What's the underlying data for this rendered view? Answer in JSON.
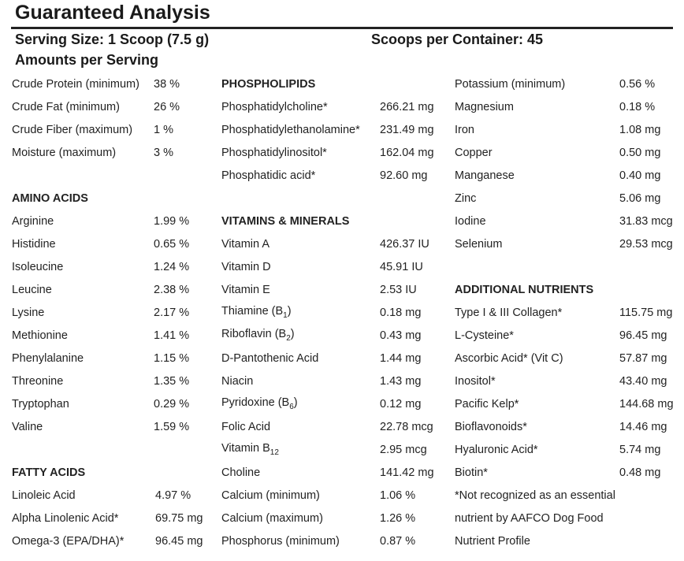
{
  "title": "Guaranteed Analysis",
  "serving_size": "Serving Size: 1 Scoop (7.5 g)",
  "scoops_per_container": "Scoops per Container: 45",
  "amounts_per_serving": "Amounts per Serving",
  "col1": {
    "basics": [
      {
        "label": "Crude Protein (minimum)",
        "value": "38 %"
      },
      {
        "label": "Crude Fat (minimum)",
        "value": "26 %"
      },
      {
        "label": "Crude Fiber (maximum)",
        "value": "1 %"
      },
      {
        "label": "Moisture (maximum)",
        "value": "3 %"
      }
    ],
    "amino_heading": "AMINO ACIDS",
    "amino": [
      {
        "label": "Arginine",
        "value": "1.99 %"
      },
      {
        "label": "Histidine",
        "value": "0.65 %"
      },
      {
        "label": "Isoleucine",
        "value": "1.24 %"
      },
      {
        "label": "Leucine",
        "value": "2.38 %"
      },
      {
        "label": "Lysine",
        "value": "2.17 %"
      },
      {
        "label": "Methionine",
        "value": "1.41 %"
      },
      {
        "label": "Phenylalanine",
        "value": "1.15 %"
      },
      {
        "label": "Threonine",
        "value": "1.35 %"
      },
      {
        "label": "Tryptophan",
        "value": "0.29 %"
      },
      {
        "label": "Valine",
        "value": "1.59 %"
      }
    ],
    "fatty_heading": "FATTY ACIDS",
    "fatty": [
      {
        "label": "Linoleic Acid",
        "value": "4.97 %"
      },
      {
        "label": "Alpha Linolenic Acid*",
        "value": "69.75 mg"
      },
      {
        "label": "Omega-3 (EPA/DHA)*",
        "value": "96.45 mg"
      }
    ]
  },
  "col2": {
    "phospho_heading": "PHOSPHOLIPIDS",
    "phospho": [
      {
        "label": "Phosphatidylcholine*",
        "value": "266.21 mg"
      },
      {
        "label": "Phosphatidylethanolamine*",
        "value": "231.49 mg"
      },
      {
        "label": "Phosphatidylinositol*",
        "value": "162.04 mg"
      },
      {
        "label": "Phosphatidic acid*",
        "value": "92.60 mg"
      }
    ],
    "vitamins_heading": "VITAMINS & MINERALS",
    "vitamins": [
      {
        "label": "Vitamin A",
        "value": "426.37 IU"
      },
      {
        "label": "Vitamin D",
        "value": "45.91 IU"
      },
      {
        "label": "Vitamin E",
        "value": "2.53 IU"
      },
      {
        "label": "Thiamine (B",
        "sub": "1",
        "tail": ")",
        "value": "0.18 mg"
      },
      {
        "label": "Riboflavin (B",
        "sub": "2",
        "tail": ")",
        "value": "0.43 mg"
      },
      {
        "label": "D-Pantothenic Acid",
        "value": "1.44 mg"
      },
      {
        "label": "Niacin",
        "value": "1.43 mg"
      },
      {
        "label": "Pyridoxine (B",
        "sub": "6",
        "tail": ")",
        "value": "0.12 mg"
      },
      {
        "label": "Folic Acid",
        "value": "22.78 mcg"
      },
      {
        "label": "Vitamin B",
        "sub": "12",
        "tail": "",
        "value": "2.95 mcg"
      },
      {
        "label": "Choline",
        "value": "141.42 mg"
      },
      {
        "label": "Calcium (minimum)",
        "value": "1.06 %"
      },
      {
        "label": "Calcium (maximum)",
        "value": "1.26 %"
      },
      {
        "label": "Phosphorus (minimum)",
        "value": "0.87 %"
      }
    ]
  },
  "col3": {
    "minerals": [
      {
        "label": "Potassium (minimum)",
        "value": "0.56 %"
      },
      {
        "label": "Magnesium",
        "value": "0.18 %"
      },
      {
        "label": "Iron",
        "value": "1.08 mg"
      },
      {
        "label": "Copper",
        "value": "0.50 mg"
      },
      {
        "label": "Manganese",
        "value": "0.40 mg"
      },
      {
        "label": "Zinc",
        "value": "5.06 mg"
      },
      {
        "label": "Iodine",
        "value": "31.83 mcg"
      },
      {
        "label": "Selenium",
        "value": "29.53 mcg"
      }
    ],
    "additional_heading": "ADDITIONAL NUTRIENTS",
    "additional": [
      {
        "label": "Type I & III Collagen*",
        "value": "115.75 mg"
      },
      {
        "label": "L-Cysteine*",
        "value": "96.45 mg"
      },
      {
        "label": "Ascorbic Acid* (Vit C)",
        "value": "57.87 mg"
      },
      {
        "label": "Inositol*",
        "value": "43.40 mg"
      },
      {
        "label": "Pacific Kelp*",
        "value": "144.68 mg"
      },
      {
        "label": "Bioflavonoids*",
        "value": "14.46 mg"
      },
      {
        "label": "Hyaluronic Acid*",
        "value": "5.74 mg"
      },
      {
        "label": "Biotin*",
        "value": "0.48 mg"
      }
    ],
    "footnote": [
      "*Not recognized as an essential",
      "nutrient by AAFCO Dog Food",
      "Nutrient Profile"
    ]
  }
}
